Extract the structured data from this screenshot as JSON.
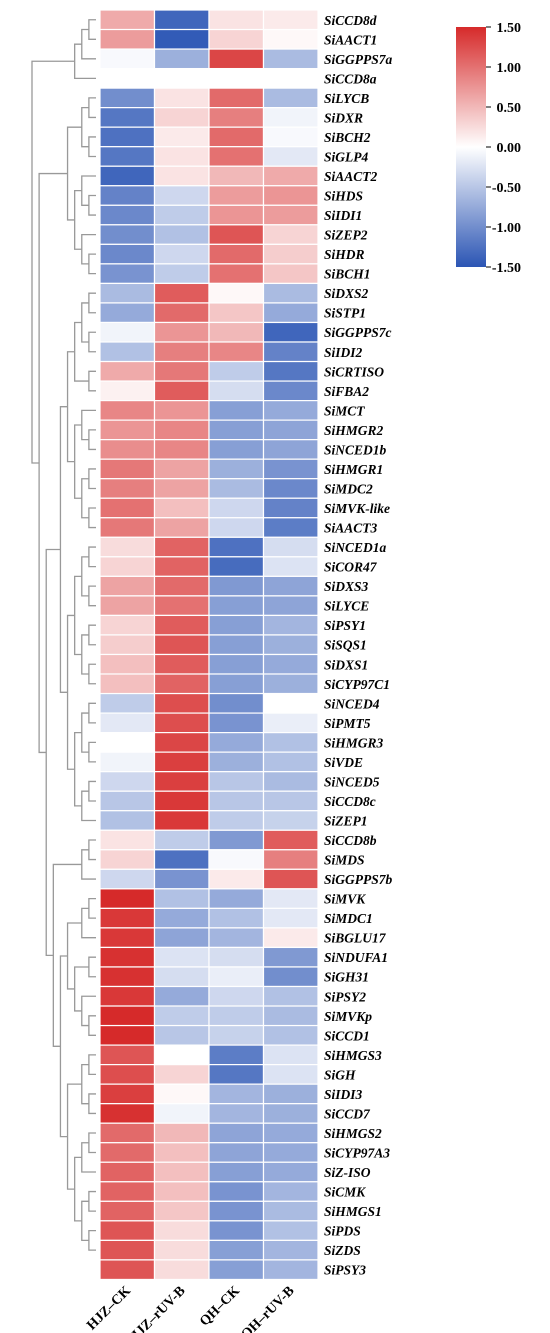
{
  "chart_data": {
    "type": "heatmap",
    "columns": [
      "HJZ–CK",
      "HJZ–rUV-B",
      "QH–CK",
      "QH–rUV-B"
    ],
    "rows": [
      {
        "gene": "SiCCD8d",
        "values": [
          0.6,
          -1.35,
          0.2,
          0.15
        ]
      },
      {
        "gene": "SiAACT1",
        "values": [
          0.7,
          -1.45,
          0.3,
          0.05
        ]
      },
      {
        "gene": "SiGGPPS7a",
        "values": [
          -0.05,
          -0.7,
          1.3,
          -0.6
        ]
      },
      {
        "gene": "SiCCD8a",
        "values": [
          0,
          0,
          0,
          0
        ]
      },
      {
        "gene": "SiLYCB",
        "values": [
          -1.0,
          0.2,
          1.05,
          -0.6
        ]
      },
      {
        "gene": "SiDXR",
        "values": [
          -1.2,
          0.3,
          0.9,
          -0.1
        ]
      },
      {
        "gene": "SiBCH2",
        "values": [
          -1.25,
          0.15,
          1.05,
          -0.05
        ]
      },
      {
        "gene": "SiGLP4",
        "values": [
          -1.2,
          0.2,
          1.0,
          -0.2
        ]
      },
      {
        "gene": "SiAACT2",
        "values": [
          -1.35,
          0.2,
          0.5,
          0.6
        ]
      },
      {
        "gene": "SiHDS",
        "values": [
          -1.1,
          -0.35,
          0.7,
          0.75
        ]
      },
      {
        "gene": "SiIDI1",
        "values": [
          -1.05,
          -0.45,
          0.75,
          0.7
        ]
      },
      {
        "gene": "SiZEP2",
        "values": [
          -1.0,
          -0.55,
          1.2,
          0.3
        ]
      },
      {
        "gene": "SiHDR",
        "values": [
          -1.05,
          -0.35,
          1.05,
          0.35
        ]
      },
      {
        "gene": "SiBCH1",
        "values": [
          -0.95,
          -0.45,
          1.0,
          0.4
        ]
      },
      {
        "gene": "SiDXS2",
        "values": [
          -0.6,
          1.15,
          0.05,
          -0.6
        ]
      },
      {
        "gene": "SiSTP1",
        "values": [
          -0.75,
          1.05,
          0.4,
          -0.75
        ]
      },
      {
        "gene": "SiGGPPS7c",
        "values": [
          -0.1,
          0.75,
          0.5,
          -1.35
        ]
      },
      {
        "gene": "SiIDI2",
        "values": [
          -0.55,
          0.9,
          0.85,
          -1.1
        ]
      },
      {
        "gene": "SiCRTISO",
        "values": [
          0.6,
          0.95,
          -0.45,
          -1.2
        ]
      },
      {
        "gene": "SiFBA2",
        "values": [
          0.1,
          1.15,
          -0.3,
          -1.05
        ]
      },
      {
        "gene": "SiMCT",
        "values": [
          0.85,
          0.75,
          -0.85,
          -0.75
        ]
      },
      {
        "gene": "SiHMGR2",
        "values": [
          0.75,
          0.85,
          -0.85,
          -0.8
        ]
      },
      {
        "gene": "SiNCED1b",
        "values": [
          0.8,
          0.85,
          -0.85,
          -0.8
        ]
      },
      {
        "gene": "SiHMGR1",
        "values": [
          0.95,
          0.65,
          -0.7,
          -0.95
        ]
      },
      {
        "gene": "SiMDC2",
        "values": [
          0.9,
          0.65,
          -0.6,
          -1.05
        ]
      },
      {
        "gene": "SiMVK-like",
        "values": [
          1.0,
          0.45,
          -0.35,
          -1.1
        ]
      },
      {
        "gene": "SiAACT3",
        "values": [
          0.95,
          0.65,
          -0.35,
          -1.15
        ]
      },
      {
        "gene": "SiNCED1a",
        "values": [
          0.25,
          1.1,
          -1.25,
          -0.3
        ]
      },
      {
        "gene": "SiCOR47",
        "values": [
          0.3,
          1.1,
          -1.3,
          -0.25
        ]
      },
      {
        "gene": "SiDXS3",
        "values": [
          0.65,
          1.05,
          -0.9,
          -0.8
        ]
      },
      {
        "gene": "SiLYCE",
        "values": [
          0.65,
          1.0,
          -0.85,
          -0.8
        ]
      },
      {
        "gene": "SiPSY1",
        "values": [
          0.3,
          1.15,
          -0.85,
          -0.65
        ]
      },
      {
        "gene": "SiSQS1",
        "values": [
          0.35,
          1.2,
          -0.85,
          -0.7
        ]
      },
      {
        "gene": "SiDXS1",
        "values": [
          0.45,
          1.15,
          -0.85,
          -0.75
        ]
      },
      {
        "gene": "SiCYP97C1",
        "values": [
          0.45,
          1.1,
          -0.85,
          -0.7
        ]
      },
      {
        "gene": "SiNCED4",
        "values": [
          -0.45,
          1.25,
          -1.0,
          0.0
        ]
      },
      {
        "gene": "SiPMT5",
        "values": [
          -0.2,
          1.25,
          -0.95,
          -0.15
        ]
      },
      {
        "gene": "SiHMGR3",
        "values": [
          0.0,
          1.3,
          -0.75,
          -0.55
        ]
      },
      {
        "gene": "SiVDE",
        "values": [
          -0.1,
          1.35,
          -0.7,
          -0.55
        ]
      },
      {
        "gene": "SiNCED5",
        "values": [
          -0.35,
          1.35,
          -0.5,
          -0.6
        ]
      },
      {
        "gene": "SiCCD8c",
        "values": [
          -0.5,
          1.4,
          -0.5,
          -0.5
        ]
      },
      {
        "gene": "SiZEP1",
        "values": [
          -0.55,
          1.4,
          -0.45,
          -0.4
        ]
      },
      {
        "gene": "SiCCD8b",
        "values": [
          0.2,
          -0.45,
          -0.9,
          1.15
        ]
      },
      {
        "gene": "SiMDS",
        "values": [
          0.3,
          -1.25,
          -0.05,
          0.9
        ]
      },
      {
        "gene": "SiGGPPS7b",
        "values": [
          -0.35,
          -0.95,
          0.15,
          1.2
        ]
      },
      {
        "gene": "SiMVK",
        "values": [
          1.5,
          -0.55,
          -0.75,
          -0.2
        ]
      },
      {
        "gene": "SiMDC1",
        "values": [
          1.4,
          -0.75,
          -0.55,
          -0.2
        ]
      },
      {
        "gene": "SiBGLU17",
        "values": [
          1.4,
          -0.8,
          -0.65,
          0.15
        ]
      },
      {
        "gene": "SiNDUFA1",
        "values": [
          1.45,
          -0.25,
          -0.3,
          -0.9
        ]
      },
      {
        "gene": "SiGH31",
        "values": [
          1.45,
          -0.3,
          -0.15,
          -1.0
        ]
      },
      {
        "gene": "SiPSY2",
        "values": [
          1.4,
          -0.75,
          -0.35,
          -0.55
        ]
      },
      {
        "gene": "SiMVKp",
        "values": [
          1.5,
          -0.45,
          -0.45,
          -0.6
        ]
      },
      {
        "gene": "SiCCD1",
        "values": [
          1.5,
          -0.5,
          -0.4,
          -0.55
        ]
      },
      {
        "gene": "SiHMGS3",
        "values": [
          1.2,
          0.0,
          -1.15,
          -0.25
        ]
      },
      {
        "gene": "SiGH",
        "values": [
          1.25,
          0.3,
          -1.2,
          -0.25
        ]
      },
      {
        "gene": "SiIDI3",
        "values": [
          1.35,
          0.05,
          -0.65,
          -0.7
        ]
      },
      {
        "gene": "SiCCD7",
        "values": [
          1.45,
          -0.1,
          -0.65,
          -0.7
        ]
      },
      {
        "gene": "SiHMGS2",
        "values": [
          1.05,
          0.5,
          -0.8,
          -0.75
        ]
      },
      {
        "gene": "SiCYP97A3",
        "values": [
          1.05,
          0.45,
          -0.8,
          -0.75
        ]
      },
      {
        "gene": "SiZ-ISO",
        "values": [
          1.1,
          0.45,
          -0.85,
          -0.75
        ]
      },
      {
        "gene": "SiCMK",
        "values": [
          1.1,
          0.45,
          -0.95,
          -0.65
        ]
      },
      {
        "gene": "SiHMGS1",
        "values": [
          1.1,
          0.4,
          -0.95,
          -0.6
        ]
      },
      {
        "gene": "SiPDS",
        "values": [
          1.2,
          0.25,
          -0.95,
          -0.55
        ]
      },
      {
        "gene": "SiZDS",
        "values": [
          1.2,
          0.25,
          -0.85,
          -0.65
        ]
      },
      {
        "gene": "SiPSY3",
        "values": [
          1.2,
          0.25,
          -0.85,
          -0.65
        ]
      }
    ],
    "color_scale": {
      "min": -1.5,
      "max": 1.5,
      "low_color": "#2b55b4",
      "mid_color": "#ffffff",
      "high_color": "#d62a2a",
      "ticks": [
        "1.50",
        "1.00",
        "0.50",
        "0.00",
        "-0.50",
        "-1.00",
        "-1.50"
      ]
    },
    "row_dendrogram": true,
    "legend_position": "top-right"
  }
}
